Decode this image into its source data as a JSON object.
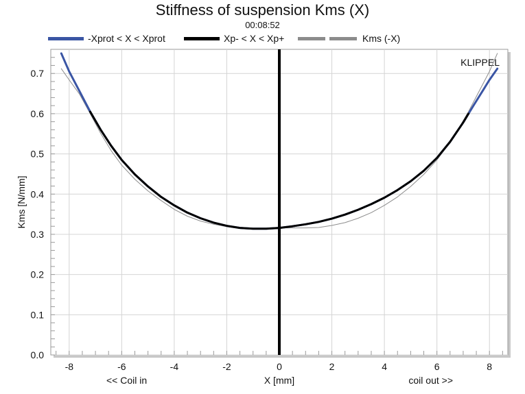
{
  "chart_data": {
    "type": "line",
    "title": "Stiffness of suspension Kms (X)",
    "subtitle": "00:08:52",
    "xlabel": "X [mm]",
    "ylabel": "Kms [N/mm]",
    "x_left_label": "<< Coil in",
    "x_right_label": "coil out >>",
    "watermark": "KLIPPEL",
    "xlim": [
      -8.7,
      8.7
    ],
    "ylim": [
      0,
      0.76
    ],
    "x_ticks": [
      -8,
      -6,
      -4,
      -2,
      0,
      2,
      4,
      6,
      8
    ],
    "y_ticks": [
      0.0,
      0.1,
      0.2,
      0.3,
      0.4,
      0.5,
      0.6,
      0.7
    ],
    "x_tick_labels": [
      "-8",
      "-6",
      "-4",
      "-2",
      "0",
      "2",
      "4",
      "6",
      "8"
    ],
    "y_tick_labels": [
      "0.0",
      "0.1",
      "0.2",
      "0.3",
      "0.4",
      "0.5",
      "0.6",
      "0.7"
    ],
    "grid": true,
    "legend_position": "top",
    "vertical_marker_x": 0,
    "series": [
      {
        "name": "-Xprot < X < Xprot",
        "color": "#3a55a4",
        "x": [
          -8.3,
          -8.0,
          -7.6,
          -7.2,
          -6.8,
          -6.4,
          -6.0,
          -5.5,
          -5.0,
          -4.5,
          -4.0,
          -3.5,
          -3.0,
          -2.5,
          -2.0,
          -1.5,
          -1.0,
          -0.5,
          0.0,
          0.5,
          1.0,
          1.5,
          2.0,
          2.5,
          3.0,
          3.5,
          4.0,
          4.5,
          5.0,
          5.5,
          6.0,
          6.5,
          7.0,
          7.4,
          7.8,
          8.0,
          8.3
        ],
        "y": [
          0.75,
          0.705,
          0.655,
          0.605,
          0.56,
          0.52,
          0.485,
          0.449,
          0.419,
          0.393,
          0.372,
          0.354,
          0.34,
          0.329,
          0.321,
          0.316,
          0.314,
          0.314,
          0.316,
          0.32,
          0.325,
          0.331,
          0.339,
          0.349,
          0.361,
          0.375,
          0.391,
          0.41,
          0.432,
          0.458,
          0.49,
          0.53,
          0.578,
          0.621,
          0.663,
          0.684,
          0.712
        ]
      },
      {
        "name": "Xp- < X < Xp+",
        "color": "#000000",
        "x": [
          -7.2,
          -6.8,
          -6.4,
          -6.0,
          -5.5,
          -5.0,
          -4.5,
          -4.0,
          -3.5,
          -3.0,
          -2.5,
          -2.0,
          -1.5,
          -1.0,
          -0.5,
          0.0,
          0.5,
          1.0,
          1.5,
          2.0,
          2.5,
          3.0,
          3.5,
          4.0,
          4.5,
          5.0,
          5.5,
          6.0,
          6.5,
          7.0,
          7.2
        ],
        "y": [
          0.605,
          0.56,
          0.52,
          0.485,
          0.449,
          0.419,
          0.393,
          0.372,
          0.354,
          0.34,
          0.329,
          0.321,
          0.316,
          0.314,
          0.314,
          0.316,
          0.32,
          0.325,
          0.331,
          0.339,
          0.349,
          0.361,
          0.375,
          0.391,
          0.41,
          0.432,
          0.458,
          0.49,
          0.53,
          0.578,
          0.6
        ]
      },
      {
        "name": "Kms (-X)",
        "color": "#8c8c8c",
        "x": [
          -8.3,
          -8.0,
          -7.6,
          -7.2,
          -6.8,
          -6.4,
          -6.0,
          -5.5,
          -5.0,
          -4.5,
          -4.0,
          -3.5,
          -3.0,
          -2.5,
          -2.0,
          -1.5,
          -1.0,
          -0.5,
          0.0,
          0.5,
          1.0,
          1.5,
          2.0,
          2.5,
          3.0,
          3.5,
          4.0,
          4.5,
          5.0,
          5.5,
          6.0,
          6.4,
          6.8,
          7.2,
          7.6,
          8.0,
          8.3
        ],
        "y": [
          0.712,
          0.684,
          0.648,
          0.6,
          0.551,
          0.508,
          0.472,
          0.437,
          0.408,
          0.384,
          0.362,
          0.345,
          0.333,
          0.325,
          0.319,
          0.315,
          0.314,
          0.314,
          0.316,
          0.316,
          0.316,
          0.317,
          0.322,
          0.329,
          0.34,
          0.354,
          0.372,
          0.393,
          0.419,
          0.449,
          0.485,
          0.52,
          0.56,
          0.605,
          0.655,
          0.705,
          0.75
        ]
      }
    ]
  }
}
